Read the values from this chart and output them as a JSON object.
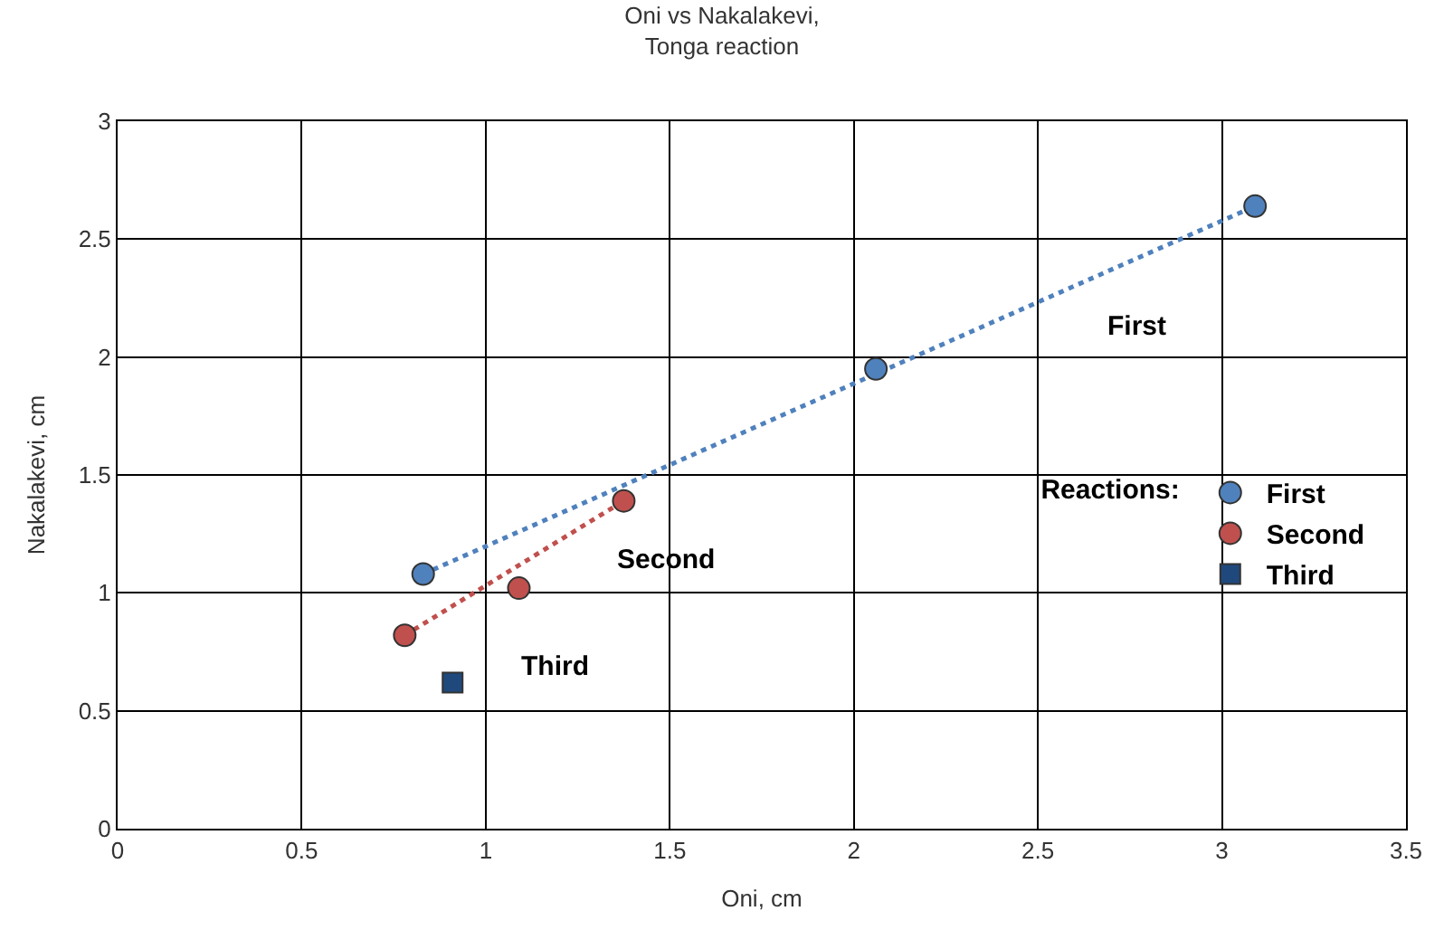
{
  "chart_data": {
    "type": "scatter",
    "title": "Oni vs Nakalakevi,\nTonga reaction",
    "xlabel": "Oni, cm",
    "ylabel": "Nakalakevi, cm",
    "legend_title": "Reactions:",
    "series": [
      {
        "name": "First",
        "marker": "circle",
        "color": "#4f81bd",
        "x": [
          0.83,
          2.06,
          3.09
        ],
        "values": [
          1.08,
          1.95,
          2.64
        ]
      },
      {
        "name": "Second",
        "marker": "circle",
        "color": "#c0504d",
        "x": [
          0.78,
          1.09,
          1.375
        ],
        "values": [
          0.82,
          1.02,
          1.39
        ]
      },
      {
        "name": "Third",
        "marker": "square",
        "color": "#1f497d",
        "x": [
          0.91
        ],
        "values": [
          0.62
        ]
      },
      {
        "type": "line",
        "line_style": "dotted",
        "color": "#4f81bd",
        "x": [
          0.83,
          3.09
        ],
        "values": [
          1.08,
          2.64
        ]
      },
      {
        "type": "line",
        "line_style": "dotted",
        "color": "#c0504d",
        "x": [
          0.78,
          1.375
        ],
        "values": [
          0.82,
          1.39
        ]
      }
    ],
    "annotations": [
      "First",
      "Second",
      "Third"
    ],
    "xlim": [
      0,
      3.5
    ],
    "xticks": [
      0,
      0.5,
      1,
      1.5,
      2,
      2.5,
      3,
      3.5
    ],
    "ylim": [
      0,
      3
    ],
    "yticks": [
      0,
      0.5,
      1,
      1.5,
      2,
      2.5,
      3
    ],
    "grid": true,
    "legend": "right"
  }
}
